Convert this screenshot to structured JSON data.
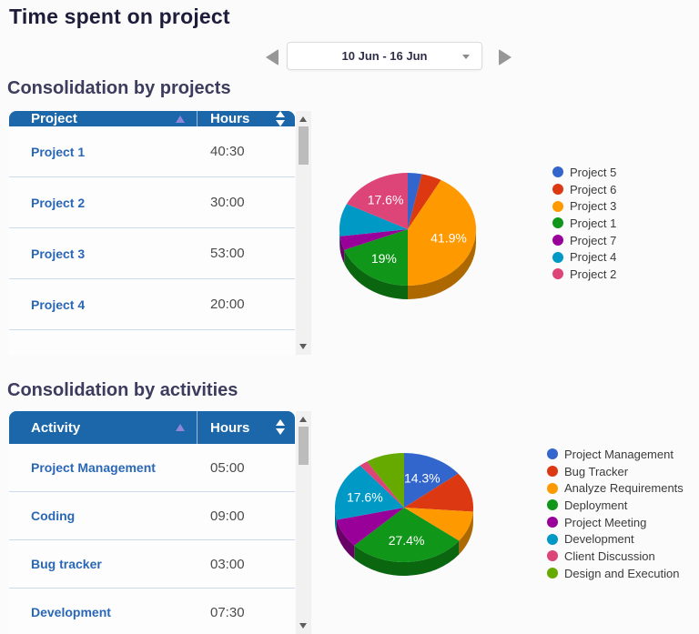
{
  "page": {
    "title": "Time spent on project",
    "date_range": "10 Jun - 16 Jun"
  },
  "sections": [
    {
      "heading": "Consolidation by projects",
      "table": {
        "columns": [
          "Project",
          "Hours"
        ],
        "rows": [
          {
            "label": "Project 1",
            "hours": "40:30"
          },
          {
            "label": "Project 2",
            "hours": "30:00"
          },
          {
            "label": "Project 3",
            "hours": "53:00"
          },
          {
            "label": "Project 4",
            "hours": "20:00"
          }
        ]
      }
    },
    {
      "heading": "Consolidation by activities",
      "table": {
        "columns": [
          "Activity",
          "Hours"
        ],
        "rows": [
          {
            "label": "Project Management",
            "hours": "05:00"
          },
          {
            "label": "Coding",
            "hours": "09:00"
          },
          {
            "label": "Bug tracker",
            "hours": "03:00"
          },
          {
            "label": "Development",
            "hours": "07:30"
          }
        ]
      }
    }
  ],
  "chart_data": [
    {
      "type": "pie",
      "is3d": true,
      "legend_position": "right",
      "title": "Consolidation by projects",
      "slices": [
        {
          "label": "Project 5",
          "pct": 3.3,
          "color": "#3366cc"
        },
        {
          "label": "Project 6",
          "pct": 4.8,
          "color": "#dc3912"
        },
        {
          "label": "Project 3",
          "pct": 41.9,
          "color": "#ff9900",
          "label_text": "41.9%"
        },
        {
          "label": "Project 1",
          "pct": 19.0,
          "color": "#109618",
          "label_text": "19%"
        },
        {
          "label": "Project 7",
          "pct": 4.0,
          "color": "#990099"
        },
        {
          "label": "Project 4",
          "pct": 9.4,
          "color": "#0099c6"
        },
        {
          "label": "Project 2",
          "pct": 17.6,
          "color": "#dd4477",
          "label_text": "17.6%"
        }
      ]
    },
    {
      "type": "pie",
      "is3d": true,
      "legend_position": "right",
      "title": "Consolidation by activities",
      "slices": [
        {
          "label": "Project Management",
          "pct": 14.3,
          "color": "#3366cc",
          "label_text": "14.3%"
        },
        {
          "label": "Bug Tracker",
          "pct": 11.9,
          "color": "#dc3912"
        },
        {
          "label": "Analyze Requirements",
          "pct": 9.2,
          "color": "#ff9900"
        },
        {
          "label": "Deployment",
          "pct": 27.4,
          "color": "#109618",
          "label_text": "27.4%"
        },
        {
          "label": "Project Meeting",
          "pct": 8.6,
          "color": "#990099"
        },
        {
          "label": "Development",
          "pct": 17.6,
          "color": "#0099c6",
          "label_text": "17.6%"
        },
        {
          "label": "Client Discussion",
          "pct": 2.0,
          "color": "#dd4477"
        },
        {
          "label": "Design and Execution",
          "pct": 9.0,
          "color": "#66aa00"
        }
      ]
    }
  ],
  "colors": {
    "table_header": "#1b67a9",
    "link_blue": "#2a67b5",
    "heading": "#3c3c5e"
  }
}
